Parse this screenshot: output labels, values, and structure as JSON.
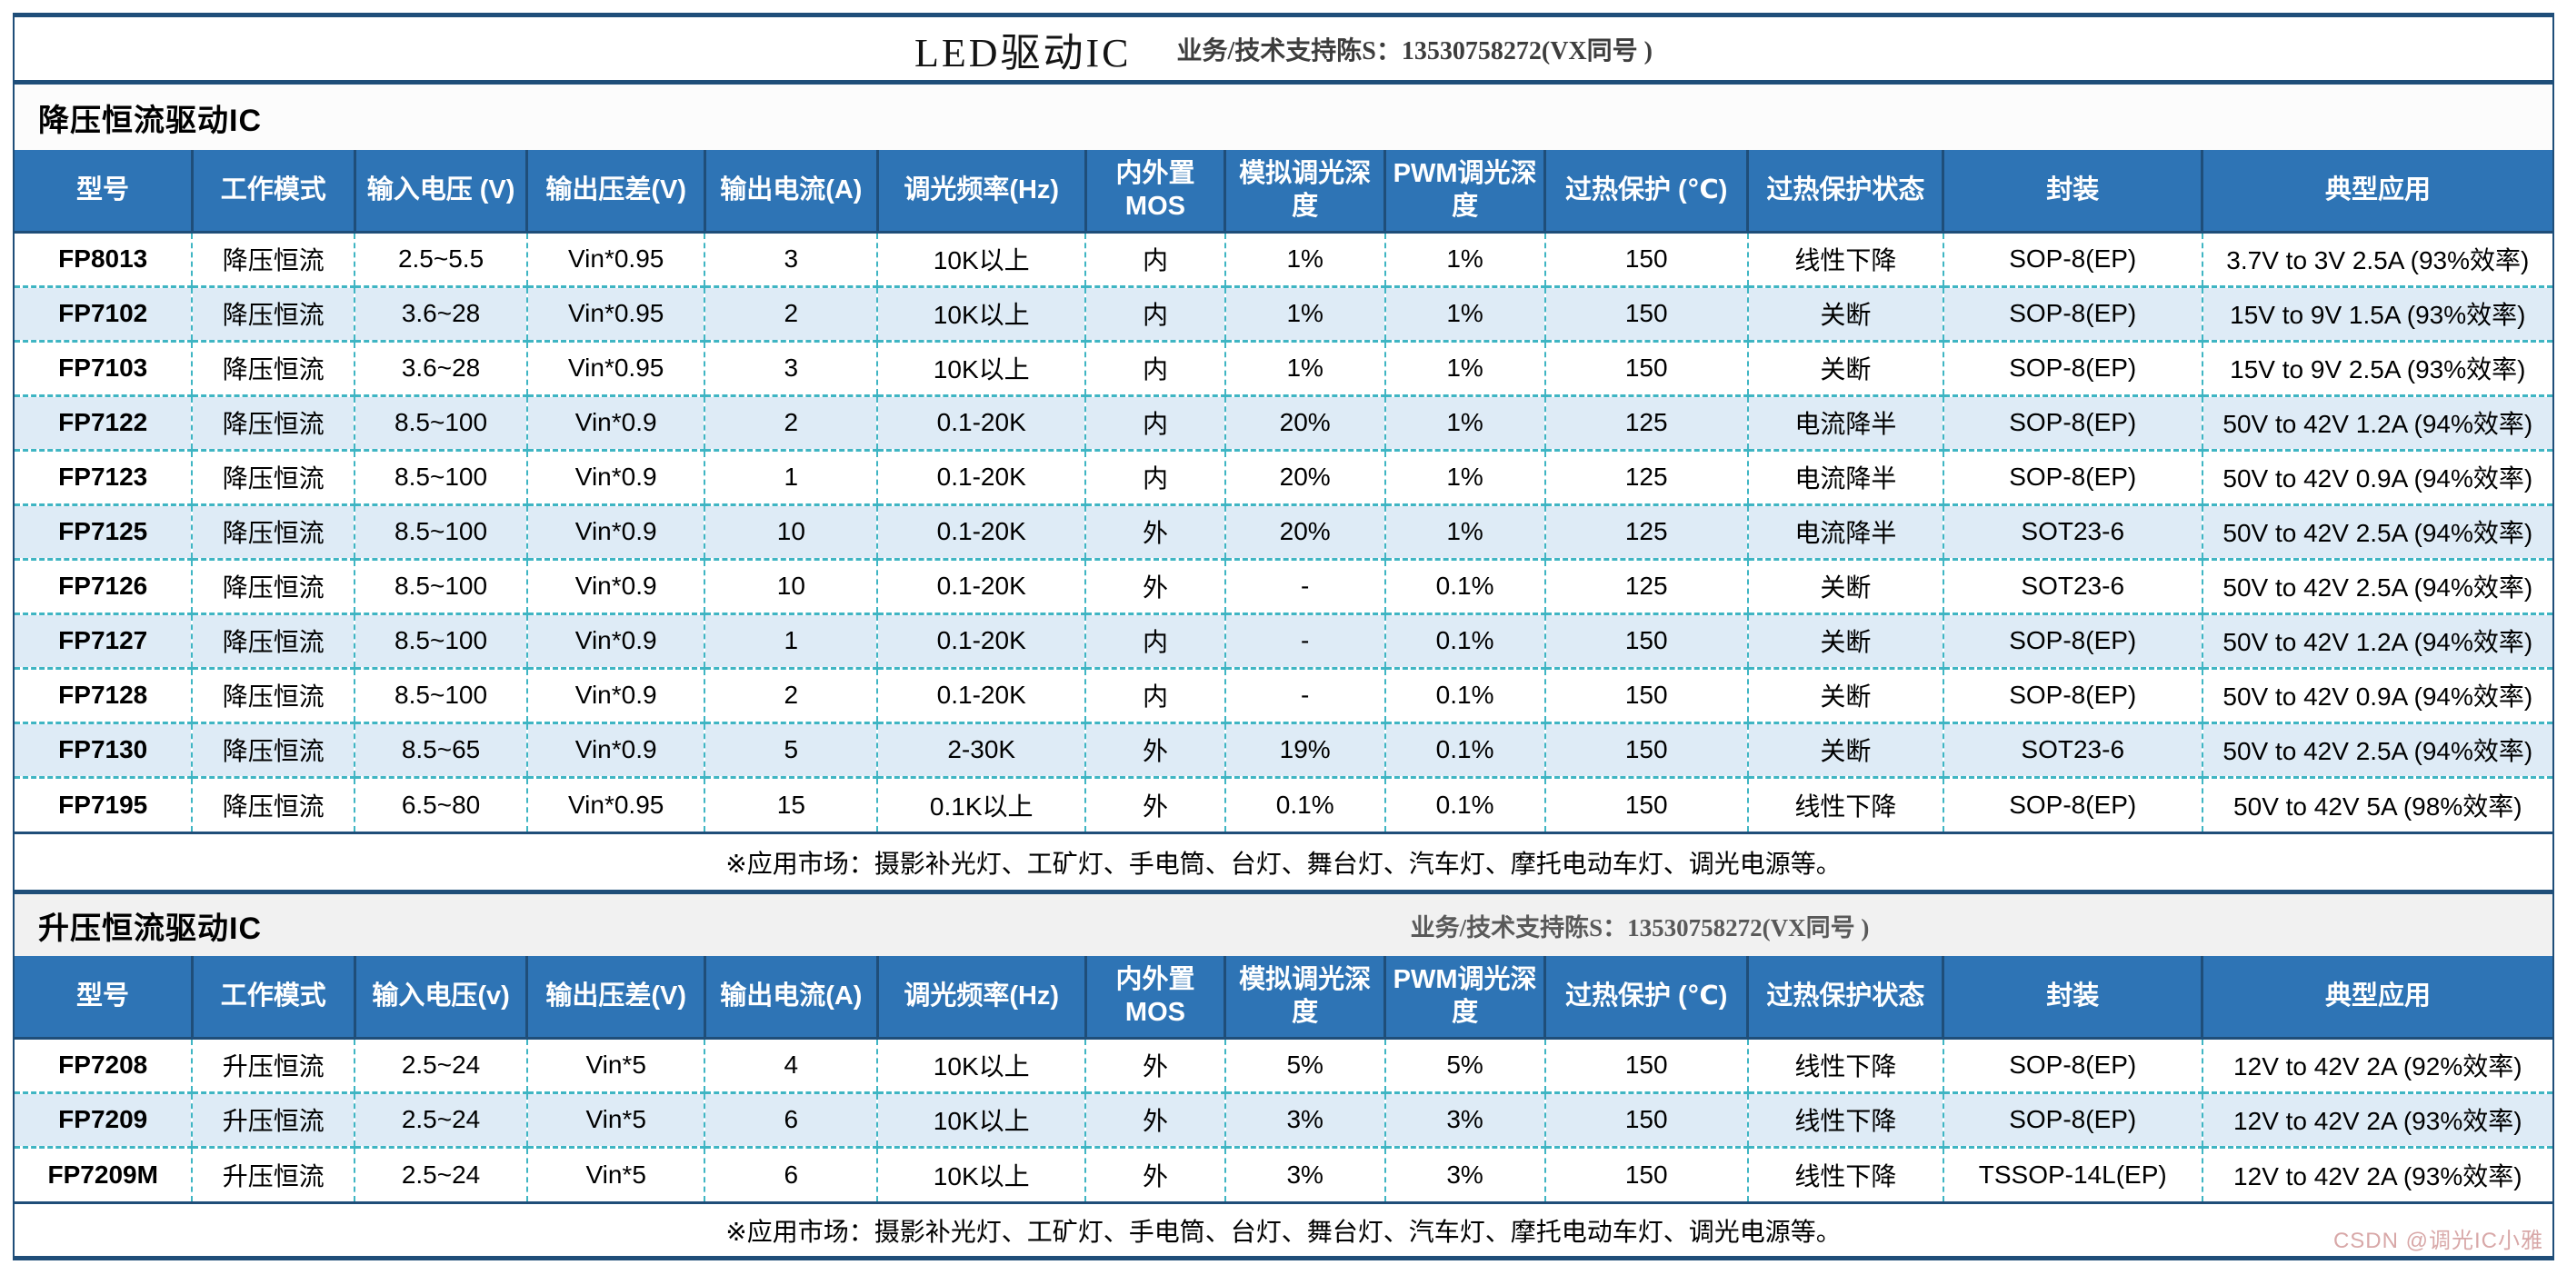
{
  "header": {
    "title": "LED驱动IC",
    "contact": "业务/技术支持陈S：13530758272(VX同号 )"
  },
  "watermark": "CSDN @调光IC小雅",
  "colors": {
    "header_blue": "#2E74B5",
    "alt_row_blue": "#DEEBF6",
    "rule_navy": "#1F4E79",
    "grid_teal": "#3FB5C3"
  },
  "sections": [
    {
      "title": "降压恒流驱动IC",
      "contact": "",
      "columns": [
        "型号",
        "工作模式",
        "输入电压 (V)",
        "输出压差(V)",
        "输出电流(A)",
        "调光频率(Hz)",
        "内外置MOS",
        "模拟调光深度",
        "PWM调光深度",
        "过热保护 (℃)",
        "过热保护状态",
        "封装",
        "典型应用"
      ],
      "rows": [
        [
          "FP8013",
          "降压恒流",
          "2.5~5.5",
          "Vin*0.95",
          "3",
          "10K以上",
          "内",
          "1%",
          "1%",
          "150",
          "线性下降",
          "SOP-8(EP)",
          "3.7V to 3V 2.5A (93%效率)"
        ],
        [
          "FP7102",
          "降压恒流",
          "3.6~28",
          "Vin*0.95",
          "2",
          "10K以上",
          "内",
          "1%",
          "1%",
          "150",
          "关断",
          "SOP-8(EP)",
          "15V to 9V 1.5A (93%效率)"
        ],
        [
          "FP7103",
          "降压恒流",
          "3.6~28",
          "Vin*0.95",
          "3",
          "10K以上",
          "内",
          "1%",
          "1%",
          "150",
          "关断",
          "SOP-8(EP)",
          "15V to 9V 2.5A (93%效率)"
        ],
        [
          "FP7122",
          "降压恒流",
          "8.5~100",
          "Vin*0.9",
          "2",
          "0.1-20K",
          "内",
          "20%",
          "1%",
          "125",
          "电流降半",
          "SOP-8(EP)",
          "50V to 42V 1.2A (94%效率)"
        ],
        [
          "FP7123",
          "降压恒流",
          "8.5~100",
          "Vin*0.9",
          "1",
          "0.1-20K",
          "内",
          "20%",
          "1%",
          "125",
          "电流降半",
          "SOP-8(EP)",
          "50V to 42V 0.9A (94%效率)"
        ],
        [
          "FP7125",
          "降压恒流",
          "8.5~100",
          "Vin*0.9",
          "10",
          "0.1-20K",
          "外",
          "20%",
          "1%",
          "125",
          "电流降半",
          "SOT23-6",
          "50V to 42V 2.5A (94%效率)"
        ],
        [
          "FP7126",
          "降压恒流",
          "8.5~100",
          "Vin*0.9",
          "10",
          "0.1-20K",
          "外",
          "-",
          "0.1%",
          "125",
          "关断",
          "SOT23-6",
          "50V to 42V 2.5A (94%效率)"
        ],
        [
          "FP7127",
          "降压恒流",
          "8.5~100",
          "Vin*0.9",
          "1",
          "0.1-20K",
          "内",
          "-",
          "0.1%",
          "150",
          "关断",
          "SOP-8(EP)",
          "50V to 42V 1.2A (94%效率)"
        ],
        [
          "FP7128",
          "降压恒流",
          "8.5~100",
          "Vin*0.9",
          "2",
          "0.1-20K",
          "内",
          "-",
          "0.1%",
          "150",
          "关断",
          "SOP-8(EP)",
          "50V to 42V 0.9A (94%效率)"
        ],
        [
          "FP7130",
          "降压恒流",
          "8.5~65",
          "Vin*0.9",
          "5",
          "2-30K",
          "外",
          "19%",
          "0.1%",
          "150",
          "关断",
          "SOT23-6",
          "50V to 42V 2.5A (94%效率)"
        ],
        [
          "FP7195",
          "降压恒流",
          "6.5~80",
          "Vin*0.95",
          "15",
          "0.1K以上",
          "外",
          "0.1%",
          "0.1%",
          "150",
          "线性下降",
          "SOP-8(EP)",
          "50V to 42V 5A (98%效率)"
        ]
      ],
      "note": "※应用市场：摄影补光灯、工矿灯、手电筒、台灯、舞台灯、汽车灯、摩托电动车灯、调光电源等。"
    },
    {
      "title": "升压恒流驱动IC",
      "contact": "业务/技术支持陈S：13530758272(VX同号 )",
      "columns": [
        "型号",
        "工作模式",
        "输入电压(v)",
        "输出压差(V)",
        "输出电流(A)",
        "调光频率(Hz)",
        "内外置MOS",
        "模拟调光深度",
        "PWM调光深度",
        "过热保护 (℃)",
        "过热保护状态",
        "封装",
        "典型应用"
      ],
      "rows": [
        [
          "FP7208",
          "升压恒流",
          "2.5~24",
          "Vin*5",
          "4",
          "10K以上",
          "外",
          "5%",
          "5%",
          "150",
          "线性下降",
          "SOP-8(EP)",
          "12V to 42V 2A (92%效率)"
        ],
        [
          "FP7209",
          "升压恒流",
          "2.5~24",
          "Vin*5",
          "6",
          "10K以上",
          "外",
          "3%",
          "3%",
          "150",
          "线性下降",
          "SOP-8(EP)",
          "12V to 42V 2A (93%效率)"
        ],
        [
          "FP7209M",
          "升压恒流",
          "2.5~24",
          "Vin*5",
          "6",
          "10K以上",
          "外",
          "3%",
          "3%",
          "150",
          "线性下降",
          "TSSOP-14L(EP)",
          "12V to 42V 2A (93%效率)"
        ]
      ],
      "note": "※应用市场：摄影补光灯、工矿灯、手电筒、台灯、舞台灯、汽车灯、摩托电动车灯、调光电源等。"
    }
  ]
}
